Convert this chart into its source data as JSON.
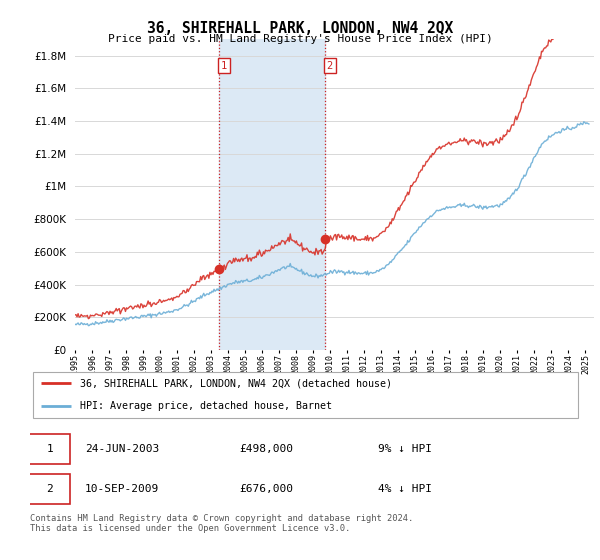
{
  "title": "36, SHIREHALL PARK, LONDON, NW4 2QX",
  "subtitle": "Price paid vs. HM Land Registry's House Price Index (HPI)",
  "ytick_values": [
    0,
    200000,
    400000,
    600000,
    800000,
    1000000,
    1200000,
    1400000,
    1600000,
    1800000
  ],
  "ylim": [
    0,
    1900000
  ],
  "xlim_start": 1995.0,
  "xlim_end": 2025.5,
  "hpi_color": "#6baed6",
  "price_color": "#d73027",
  "sale1_x": 2003.48,
  "sale1_y": 498000,
  "sale2_x": 2009.71,
  "sale2_y": 676000,
  "vline1_x": 2003.48,
  "vline2_x": 2009.71,
  "legend_line1": "36, SHIREHALL PARK, LONDON, NW4 2QX (detached house)",
  "legend_line2": "HPI: Average price, detached house, Barnet",
  "table_row1_num": "1",
  "table_row1_date": "24-JUN-2003",
  "table_row1_price": "£498,000",
  "table_row1_hpi": "9% ↓ HPI",
  "table_row2_num": "2",
  "table_row2_date": "10-SEP-2009",
  "table_row2_price": "£676,000",
  "table_row2_hpi": "4% ↓ HPI",
  "footer": "Contains HM Land Registry data © Crown copyright and database right 2024.\nThis data is licensed under the Open Government Licence v3.0.",
  "bg_color": "#ffffff",
  "plot_bg_color": "#ffffff",
  "grid_color": "#d8d8d8",
  "shade_color": "#dce9f5",
  "hpi_anchors": [
    [
      1995.0,
      155000
    ],
    [
      1995.5,
      158000
    ],
    [
      1996.0,
      162000
    ],
    [
      1996.5,
      168000
    ],
    [
      1997.0,
      176000
    ],
    [
      1997.5,
      185000
    ],
    [
      1998.0,
      192000
    ],
    [
      1998.5,
      198000
    ],
    [
      1999.0,
      205000
    ],
    [
      1999.5,
      213000
    ],
    [
      2000.0,
      222000
    ],
    [
      2000.5,
      232000
    ],
    [
      2001.0,
      248000
    ],
    [
      2001.5,
      270000
    ],
    [
      2002.0,
      298000
    ],
    [
      2002.5,
      330000
    ],
    [
      2003.0,
      355000
    ],
    [
      2003.5,
      375000
    ],
    [
      2004.0,
      400000
    ],
    [
      2004.5,
      415000
    ],
    [
      2005.0,
      420000
    ],
    [
      2005.5,
      428000
    ],
    [
      2006.0,
      445000
    ],
    [
      2006.5,
      468000
    ],
    [
      2007.0,
      492000
    ],
    [
      2007.5,
      510000
    ],
    [
      2008.0,
      495000
    ],
    [
      2008.5,
      470000
    ],
    [
      2009.0,
      450000
    ],
    [
      2009.5,
      455000
    ],
    [
      2010.0,
      475000
    ],
    [
      2010.5,
      480000
    ],
    [
      2011.0,
      478000
    ],
    [
      2011.5,
      470000
    ],
    [
      2012.0,
      468000
    ],
    [
      2012.5,
      472000
    ],
    [
      2013.0,
      490000
    ],
    [
      2013.5,
      530000
    ],
    [
      2014.0,
      590000
    ],
    [
      2014.5,
      650000
    ],
    [
      2015.0,
      720000
    ],
    [
      2015.5,
      780000
    ],
    [
      2016.0,
      830000
    ],
    [
      2016.5,
      860000
    ],
    [
      2017.0,
      870000
    ],
    [
      2017.5,
      880000
    ],
    [
      2018.0,
      885000
    ],
    [
      2018.5,
      878000
    ],
    [
      2019.0,
      870000
    ],
    [
      2019.5,
      878000
    ],
    [
      2020.0,
      885000
    ],
    [
      2020.5,
      920000
    ],
    [
      2021.0,
      990000
    ],
    [
      2021.5,
      1080000
    ],
    [
      2022.0,
      1180000
    ],
    [
      2022.5,
      1270000
    ],
    [
      2023.0,
      1310000
    ],
    [
      2023.5,
      1340000
    ],
    [
      2024.0,
      1350000
    ],
    [
      2024.5,
      1370000
    ],
    [
      2025.0,
      1390000
    ]
  ]
}
